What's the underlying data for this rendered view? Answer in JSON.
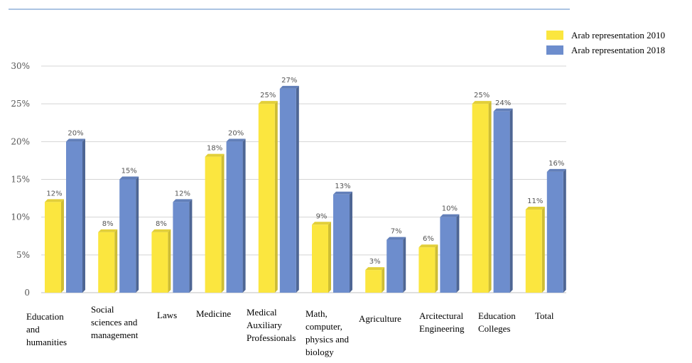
{
  "chart_data": {
    "type": "bar",
    "title": "",
    "xlabel": "",
    "ylabel": "",
    "categories": [
      [
        "Education",
        "and",
        "humanities"
      ],
      [
        "Social",
        "sciences and",
        "management"
      ],
      [
        "Laws"
      ],
      [
        "Medicine"
      ],
      [
        "Medical",
        "Auxiliary",
        "Professionals"
      ],
      [
        "Math,",
        "computer,",
        "physics and",
        "biology"
      ],
      [
        "Agriculture"
      ],
      [
        "Arcitectural",
        "Engineering"
      ],
      [
        "Education",
        "Colleges"
      ],
      [
        "Total"
      ]
    ],
    "series": [
      {
        "name": "Arab representation 2010",
        "color": "#fbe63f",
        "values": [
          12,
          8,
          8,
          18,
          25,
          9,
          3,
          6,
          25,
          11
        ],
        "labels": [
          "12%",
          "8%",
          "8%",
          "18%",
          "25%",
          "9%",
          "3%",
          "6%",
          "25%",
          "11%"
        ]
      },
      {
        "name": "Arab representation 2018",
        "color": "#6d8dcd",
        "values": [
          20,
          15,
          12,
          20,
          27,
          13,
          7,
          10,
          24,
          16
        ],
        "labels": [
          "20%",
          "15%",
          "12%",
          "20%",
          "27%",
          "13%",
          "7%",
          "10%",
          "24%",
          "16%"
        ]
      }
    ],
    "y_ticks": [
      0,
      5,
      10,
      15,
      20,
      25,
      30
    ],
    "y_tick_labels": [
      "0",
      "5%",
      "10%",
      "15%",
      "20%",
      "25%",
      "30%"
    ],
    "ylim": [
      0,
      30
    ],
    "grid": true,
    "legend_position": "top-right"
  }
}
